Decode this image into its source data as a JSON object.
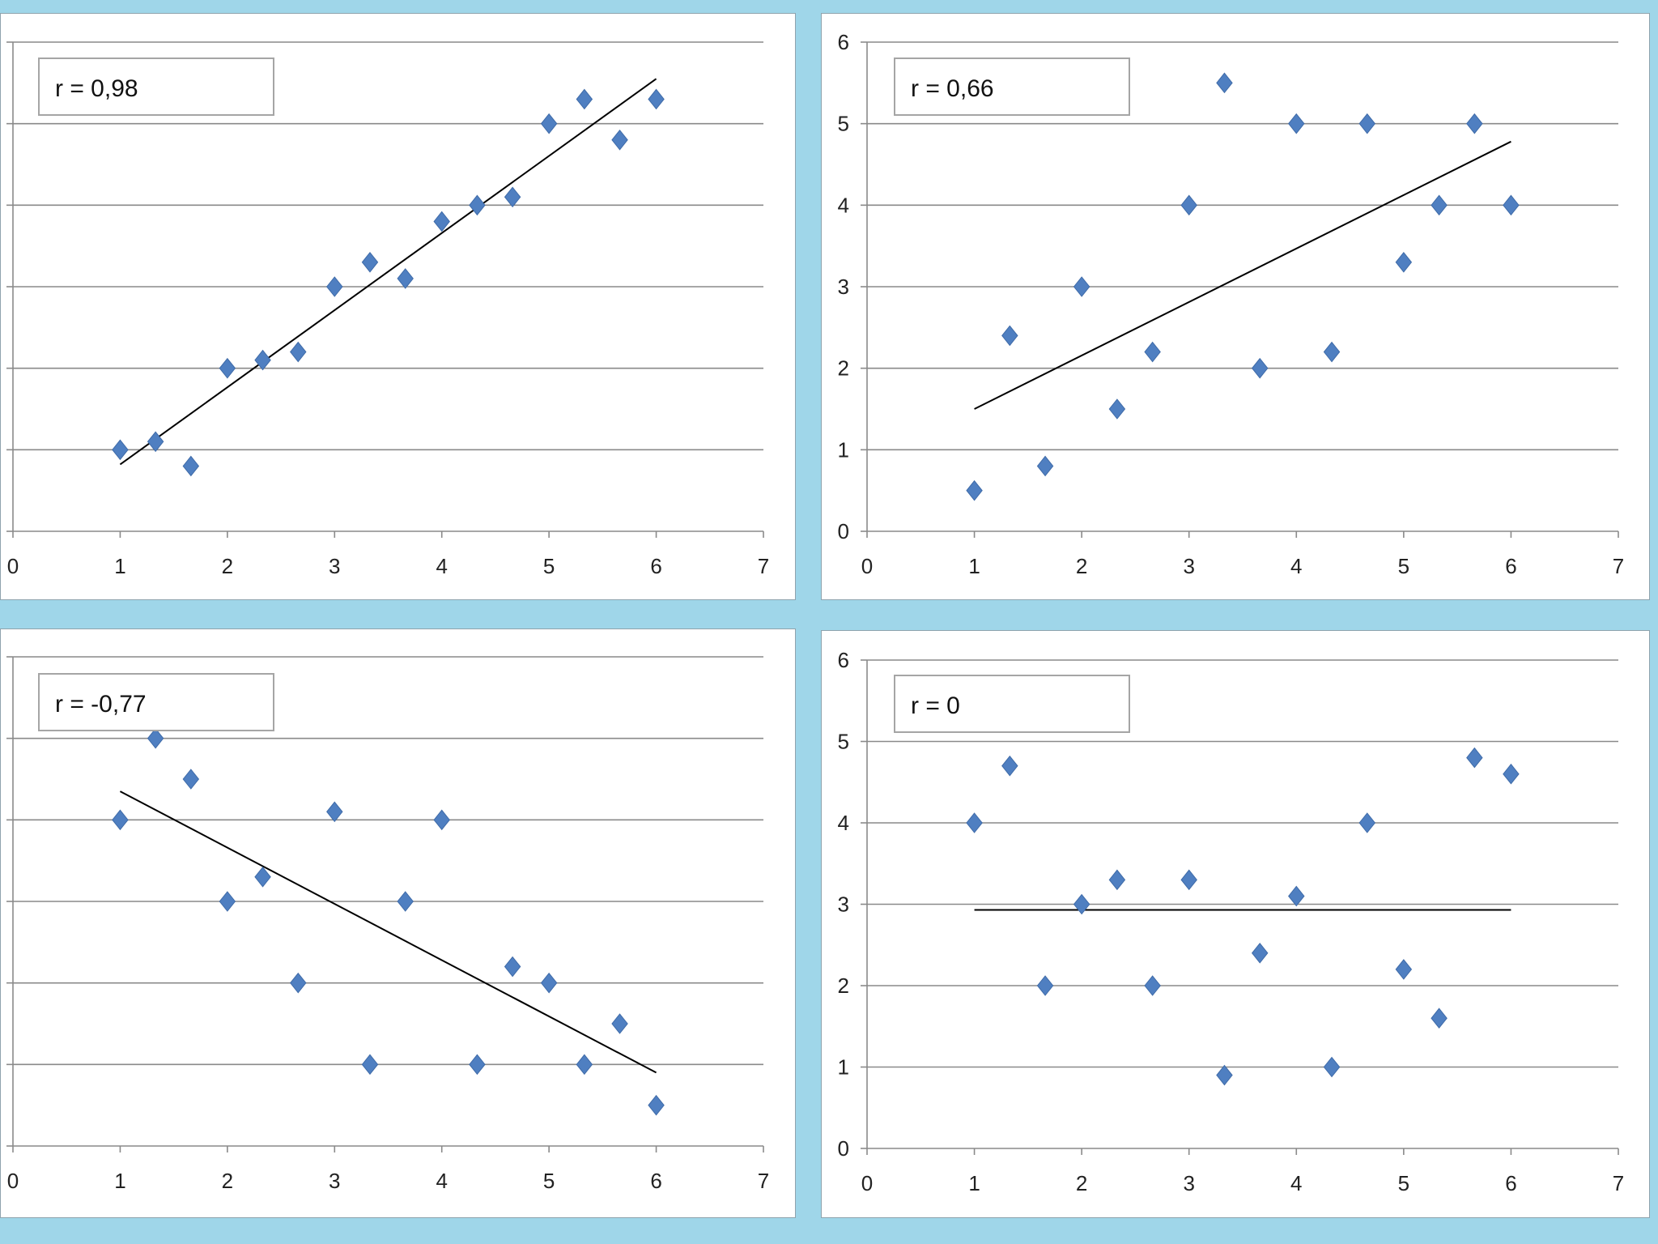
{
  "colors": {
    "background": "#9fd6e9",
    "marker": "#4f7fc1",
    "trendline": "#000000",
    "grid": "#8a8a8a"
  },
  "chart_data": [
    {
      "type": "scatter",
      "annotation": "r = 0,98",
      "xlim": [
        0,
        7
      ],
      "ylim": [
        0,
        6
      ],
      "xticks": [
        "0",
        "1",
        "2",
        "3",
        "4",
        "5",
        "6",
        "7"
      ],
      "yticks": [],
      "grid": true,
      "marker": "diamond",
      "points": [
        [
          1,
          1
        ],
        [
          1.33,
          1.1
        ],
        [
          1.66,
          0.8
        ],
        [
          2,
          2
        ],
        [
          2.33,
          2.1
        ],
        [
          2.66,
          2.2
        ],
        [
          3,
          3
        ],
        [
          3.33,
          3.3
        ],
        [
          3.66,
          3.1
        ],
        [
          4,
          3.8
        ],
        [
          4.33,
          4
        ],
        [
          4.66,
          4.1
        ],
        [
          5,
          5
        ],
        [
          5.33,
          5.3
        ],
        [
          5.66,
          4.8
        ],
        [
          6,
          5.3
        ]
      ],
      "trendline": [
        [
          1,
          0.82
        ],
        [
          6,
          5.55
        ]
      ]
    },
    {
      "type": "scatter",
      "annotation": "r = 0,66",
      "xlim": [
        0,
        7
      ],
      "ylim": [
        0,
        6
      ],
      "xticks": [
        "0",
        "1",
        "2",
        "3",
        "4",
        "5",
        "6",
        "7"
      ],
      "yticks": [
        "0",
        "1",
        "2",
        "3",
        "4",
        "5",
        "6"
      ],
      "grid": true,
      "marker": "diamond",
      "points": [
        [
          1,
          0.5
        ],
        [
          1.33,
          2.4
        ],
        [
          1.66,
          0.8
        ],
        [
          2,
          3
        ],
        [
          2.33,
          1.5
        ],
        [
          2.66,
          2.2
        ],
        [
          3,
          4
        ],
        [
          3.33,
          5.5
        ],
        [
          3.66,
          2
        ],
        [
          4,
          5
        ],
        [
          4.33,
          2.2
        ],
        [
          4.66,
          5
        ],
        [
          5,
          3.3
        ],
        [
          5.33,
          4
        ],
        [
          5.66,
          5
        ],
        [
          6,
          4
        ]
      ],
      "trendline": [
        [
          1,
          1.5
        ],
        [
          6,
          4.78
        ]
      ]
    },
    {
      "type": "scatter",
      "annotation": "r = -0,77",
      "xlim": [
        0,
        7
      ],
      "ylim": [
        0,
        6
      ],
      "xticks": [
        "0",
        "1",
        "2",
        "3",
        "4",
        "5",
        "6",
        "7"
      ],
      "yticks": [],
      "grid": true,
      "marker": "diamond",
      "points": [
        [
          1,
          4
        ],
        [
          1.33,
          5
        ],
        [
          1.66,
          4.5
        ],
        [
          2,
          3
        ],
        [
          2.33,
          3.3
        ],
        [
          2.66,
          2
        ],
        [
          3,
          4.1
        ],
        [
          3.33,
          1
        ],
        [
          3.66,
          3
        ],
        [
          4,
          4
        ],
        [
          4.33,
          1
        ],
        [
          4.66,
          2.2
        ],
        [
          5,
          2
        ],
        [
          5.33,
          1
        ],
        [
          5.66,
          1.5
        ],
        [
          6,
          0.5
        ]
      ],
      "trendline": [
        [
          1,
          4.35
        ],
        [
          6,
          0.9
        ]
      ]
    },
    {
      "type": "scatter",
      "annotation": "r = 0",
      "xlim": [
        0,
        7
      ],
      "ylim": [
        0,
        6
      ],
      "xticks": [
        "0",
        "1",
        "2",
        "3",
        "4",
        "5",
        "6",
        "7"
      ],
      "yticks": [
        "0",
        "1",
        "2",
        "3",
        "4",
        "5",
        "6"
      ],
      "grid": true,
      "marker": "diamond",
      "points": [
        [
          1,
          4
        ],
        [
          1.33,
          4.7
        ],
        [
          1.66,
          2
        ],
        [
          2,
          3
        ],
        [
          2.33,
          3.3
        ],
        [
          2.66,
          2
        ],
        [
          3,
          3.3
        ],
        [
          3.33,
          0.9
        ],
        [
          3.66,
          2.4
        ],
        [
          4,
          3.1
        ],
        [
          4.33,
          1
        ],
        [
          4.66,
          4
        ],
        [
          5,
          2.2
        ],
        [
          5.33,
          1.6
        ],
        [
          5.66,
          4.8
        ],
        [
          6,
          4.6
        ]
      ],
      "trendline": [
        [
          1,
          2.93
        ],
        [
          6,
          2.93
        ]
      ]
    }
  ]
}
